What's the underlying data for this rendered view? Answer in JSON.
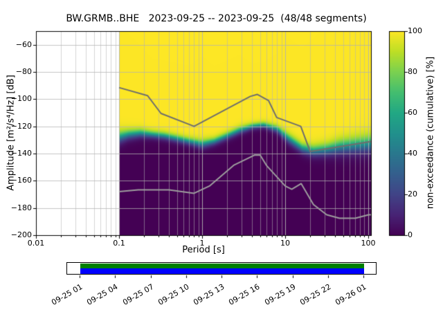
{
  "chart_data": {
    "type": "heatmap",
    "title": "BW.GRMB..BHE   2023-09-25 -- 2023-09-25  (48/48 segments)",
    "station_id": "BW.GRMB..BHE",
    "date_range": "2023-09-25 -- 2023-09-25",
    "segments_used": "48/48 segments",
    "xlabel": "Period [s]",
    "ylabel": "Amplitude [m²/s⁴/Hz] [dB]",
    "colorbar_label": "non-exceedance (cumulative) [%]",
    "x_scale": "log",
    "grid": true,
    "xlim": [
      0.01,
      108
    ],
    "ylim": [
      -200,
      -50
    ],
    "clim": [
      0,
      100
    ],
    "data_period_min_s": 0.1,
    "xticks": [
      "0.01",
      "0.1",
      "1",
      "10",
      "100"
    ],
    "xtick_values": [
      0.01,
      0.1,
      1,
      10,
      100
    ],
    "yticks": [
      "−60",
      "−80",
      "−100",
      "−120",
      "−140",
      "−160",
      "−180",
      "−200"
    ],
    "ytick_values": [
      -60,
      -80,
      -100,
      -120,
      -140,
      -160,
      -180,
      -200
    ],
    "colorbar_ticks": [
      "0",
      "20",
      "40",
      "60",
      "80",
      "100"
    ],
    "colorbar_tick_values": [
      0,
      20,
      40,
      60,
      80,
      100
    ],
    "colormap": "viridis",
    "viridis_anchors": [
      [
        0.0,
        68,
        1,
        84
      ],
      [
        0.1,
        72,
        36,
        117
      ],
      [
        0.2,
        65,
        68,
        135
      ],
      [
        0.3,
        53,
        95,
        141
      ],
      [
        0.4,
        42,
        120,
        142
      ],
      [
        0.5,
        33,
        145,
        140
      ],
      [
        0.6,
        34,
        168,
        132
      ],
      [
        0.7,
        68,
        190,
        112
      ],
      [
        0.8,
        122,
        209,
        81
      ],
      [
        0.9,
        189,
        223,
        38
      ],
      [
        1.0,
        253,
        231,
        37
      ]
    ],
    "grid_color": "#b2b2b2",
    "distribution": {
      "description": "PPSD cumulative non-exceedance vs period/amplitude; median_db is the 50% level, spread_db the transition width",
      "periods_s": [
        0.1,
        0.13,
        0.18,
        0.25,
        0.35,
        0.5,
        0.7,
        1.0,
        1.4,
        2.0,
        2.8,
        4.0,
        5.5,
        8.0,
        11,
        16,
        22,
        32,
        46,
        68,
        100,
        170
      ],
      "median_db": [
        -128,
        -126,
        -125,
        -126,
        -127,
        -129,
        -131,
        -133,
        -131,
        -127,
        -123,
        -120,
        -119,
        -122,
        -129,
        -136,
        -138,
        -137,
        -135,
        -134,
        -133,
        -132
      ],
      "spread_db": [
        5,
        4,
        3.5,
        3,
        3,
        3,
        3,
        3.5,
        3,
        3,
        3,
        2.5,
        2.5,
        3,
        4,
        4,
        4.5,
        5,
        6,
        6.5,
        7,
        7
      ]
    },
    "noise_models": {
      "nhnm_color": "#6e6e6e",
      "nlnm_color": "#9e9e9e",
      "nhnm": [
        [
          0.1,
          -91.5
        ],
        [
          0.22,
          -97.4
        ],
        [
          0.32,
          -110.5
        ],
        [
          0.8,
          -120.0
        ],
        [
          3.8,
          -98.0
        ],
        [
          4.6,
          -96.5
        ],
        [
          6.3,
          -101.0
        ],
        [
          7.9,
          -113.5
        ],
        [
          15.4,
          -120.0
        ],
        [
          20.0,
          -138.5
        ],
        [
          354.8,
          -126.0
        ]
      ],
      "nlnm": [
        [
          0.1,
          -168.0
        ],
        [
          0.17,
          -166.7
        ],
        [
          0.4,
          -166.7
        ],
        [
          0.8,
          -169.2
        ],
        [
          1.24,
          -163.7
        ],
        [
          2.4,
          -148.6
        ],
        [
          4.3,
          -141.1
        ],
        [
          5.0,
          -141.1
        ],
        [
          6.0,
          -149.0
        ],
        [
          10.0,
          -163.8
        ],
        [
          12.0,
          -166.2
        ],
        [
          15.6,
          -162.1
        ],
        [
          21.9,
          -177.5
        ],
        [
          31.6,
          -185.0
        ],
        [
          45.0,
          -187.5
        ],
        [
          70.0,
          -187.5
        ],
        [
          101.0,
          -185.0
        ],
        [
          154.0,
          -185.0
        ],
        [
          328.0,
          -187.5
        ]
      ]
    }
  },
  "coverage": {
    "green_color": "#008000",
    "blue_color": "#0000ff",
    "tick_labels": [
      "09-25 01",
      "09-25 04",
      "09-25 07",
      "09-25 10",
      "09-25 13",
      "09-25 16",
      "09-25 19",
      "09-25 22",
      "09-26 01"
    ]
  }
}
